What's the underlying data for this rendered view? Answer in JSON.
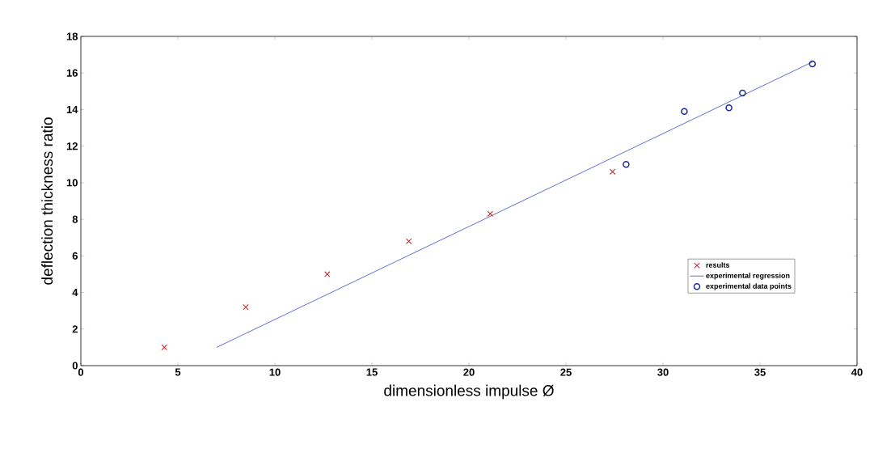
{
  "chart_data": {
    "type": "scatter",
    "xlabel": "dimensionless impulse Ø",
    "ylabel": "deflection thickness ratio",
    "xlim": [
      0,
      40
    ],
    "xticks": [
      0,
      5,
      10,
      15,
      20,
      25,
      30,
      35,
      40
    ],
    "ylim": [
      0,
      18
    ],
    "yticks": [
      0,
      2,
      4,
      6,
      8,
      10,
      12,
      14,
      16,
      18
    ],
    "grid": false,
    "legend": "right",
    "series": [
      {
        "name": "results",
        "marker": "cross",
        "color": "#d03030",
        "x": [
          4.3,
          8.5,
          12.7,
          16.9,
          21.1,
          27.4
        ],
        "values": [
          1.0,
          3.2,
          5.0,
          6.8,
          8.3,
          10.6
        ]
      },
      {
        "name": "experimental regression",
        "type": "line",
        "marker": "none",
        "line_style": "solid",
        "color": "#5060c8",
        "x": [
          7,
          37.7
        ],
        "values": [
          1.0,
          16.6
        ]
      },
      {
        "name": "experimental data points",
        "marker": "circle",
        "color": "#1a2a9a",
        "x": [
          28.1,
          31.1,
          33.4,
          34.1,
          37.7
        ],
        "values": [
          11.0,
          13.9,
          14.1,
          14.9,
          16.5
        ]
      }
    ]
  }
}
